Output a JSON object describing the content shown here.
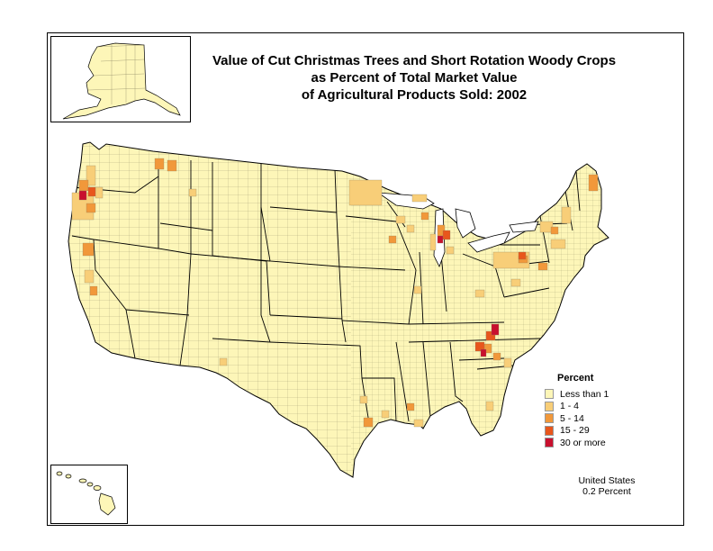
{
  "title": {
    "line1": "Value of Cut Christmas Trees and Short Rotation Woody Crops",
    "line2": "as Percent of Total Market Value",
    "line3": "of Agricultural Products Sold:  2002"
  },
  "legend": {
    "title": "Percent",
    "items": [
      {
        "label": "Less than 1",
        "color": "#fdf6b8"
      },
      {
        "label": "1 - 4",
        "color": "#f8ce78"
      },
      {
        "label": "5 - 14",
        "color": "#f1983a"
      },
      {
        "label": "15 - 29",
        "color": "#e8561c"
      },
      {
        "label": "30 or more",
        "color": "#c8102e"
      }
    ]
  },
  "footer": {
    "area": "United States",
    "value": "0.2 Percent"
  },
  "colors": {
    "background": "#ffffff",
    "land": "#fdf6b8",
    "county_lines": "#8a8462",
    "state_lines": "#000000"
  }
}
